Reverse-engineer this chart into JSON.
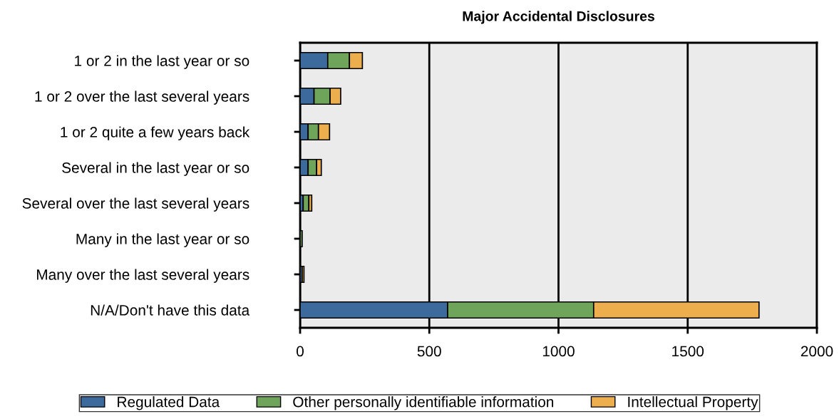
{
  "chart_data": {
    "type": "bar",
    "orientation": "horizontal",
    "stacked": true,
    "title": "Major Accidental Disclosures",
    "categories": [
      "1 or 2 in the last year or so",
      "1 or 2 over the last several years",
      "1 or 2 quite a few years back",
      "Several in the last year or so",
      "Several over the last several years",
      "Many in the last year or so",
      "Many over the last several years",
      "N/A/Don't have this data"
    ],
    "series": [
      {
        "name": "Regulated Data",
        "color": "#3c6a9c",
        "values": [
          107,
          54,
          31,
          31,
          12,
          0,
          8,
          571
        ]
      },
      {
        "name": "Other personally identifiable information",
        "color": "#6fa55a",
        "values": [
          84,
          62,
          40,
          33,
          22,
          8,
          0,
          565
        ]
      },
      {
        "name": "Intellectual Property",
        "color": "#edaf4e",
        "values": [
          50,
          41,
          43,
          18,
          11,
          0,
          7,
          640
        ]
      }
    ],
    "xlim": [
      0,
      2000
    ],
    "xticks": [
      0,
      500,
      1000,
      1500,
      2000
    ],
    "grid": "x",
    "legend": "bottom"
  }
}
